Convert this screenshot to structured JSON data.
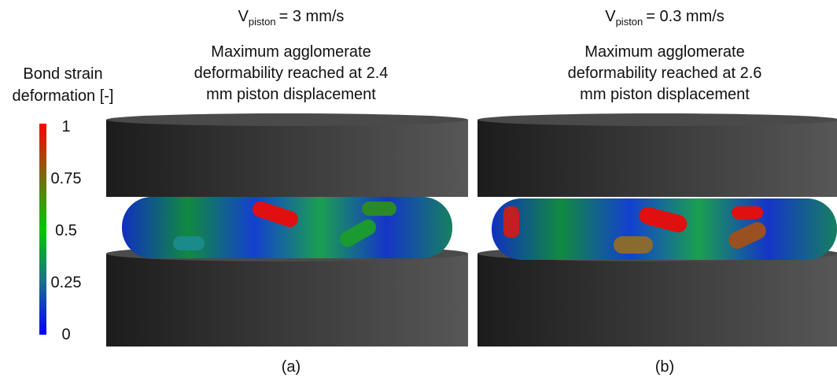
{
  "colorbar": {
    "title": [
      "Bond strain",
      "deformation [-]"
    ],
    "ticks": [
      1,
      0.75,
      0.5,
      0.25,
      0
    ]
  },
  "panels": [
    {
      "symbol": "V",
      "subscript": "piston",
      "velocity": "= 3 mm/s",
      "caption": [
        "Maximum agglomerate",
        "deformability reached at 2.4",
        "mm piston displacement"
      ],
      "label": "(a)"
    },
    {
      "symbol": "V",
      "subscript": "piston",
      "velocity": "= 0.3 mm/s",
      "caption": [
        "Maximum agglomerate",
        "deformability reached at 2.6",
        "mm piston displacement"
      ],
      "label": "(b)"
    }
  ]
}
